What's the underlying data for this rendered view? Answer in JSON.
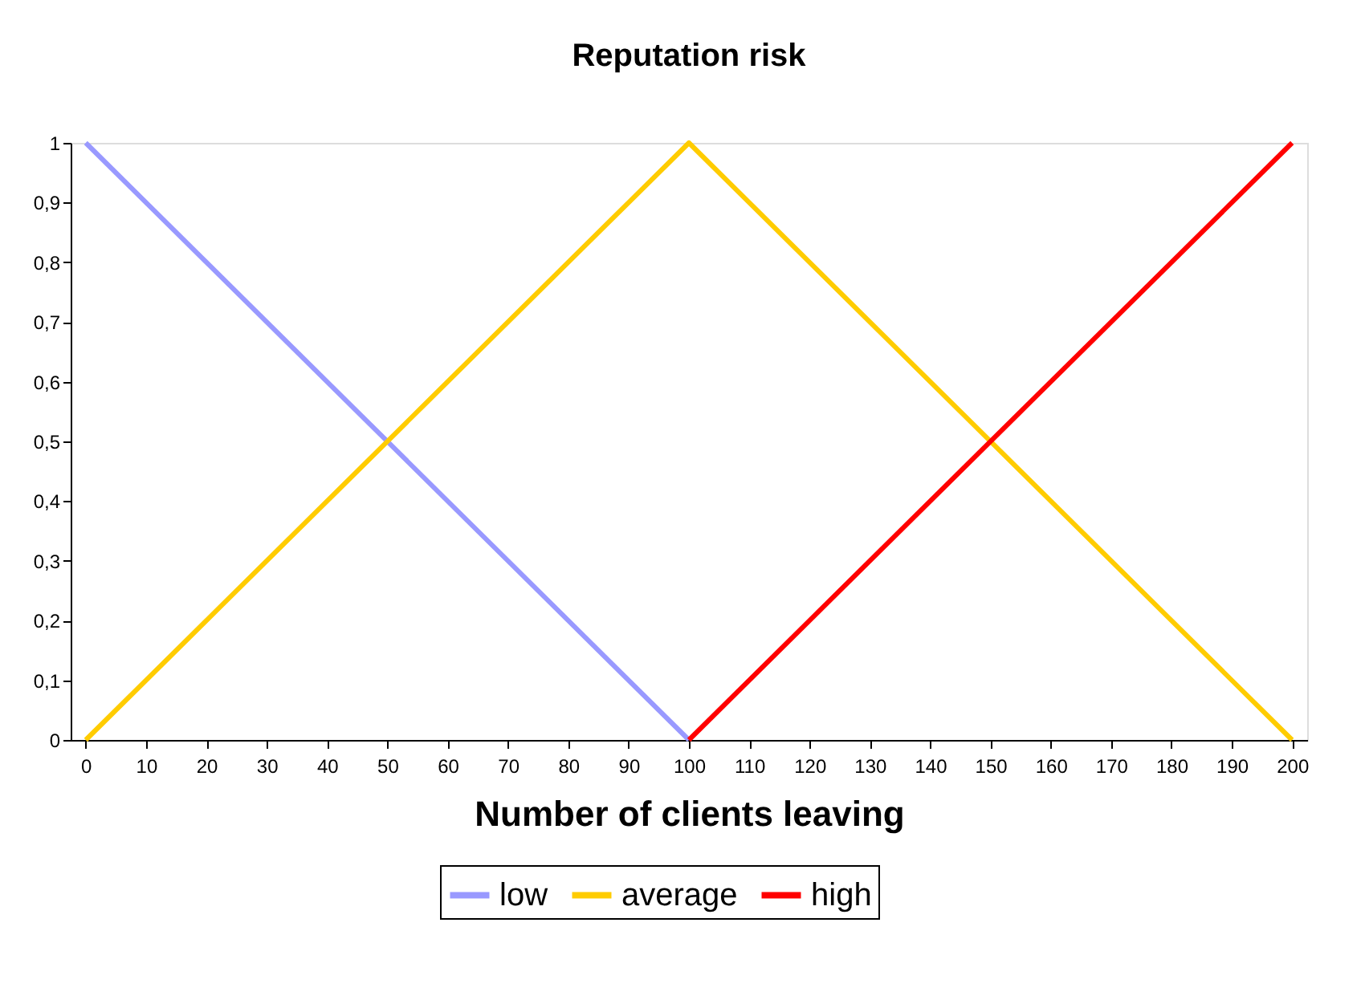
{
  "chart_data": {
    "type": "line",
    "title": "Reputation risk",
    "xlabel": "Number of clients leaving",
    "series": [
      {
        "name": "low",
        "color": "#9999ff",
        "x": [
          0,
          100
        ],
        "values": [
          1,
          0
        ]
      },
      {
        "name": "average",
        "color": "#ffcc00",
        "x": [
          0,
          100,
          200
        ],
        "values": [
          0,
          1,
          0
        ]
      },
      {
        "name": "high",
        "color": "#ff0000",
        "x": [
          100,
          200
        ],
        "values": [
          0,
          1
        ]
      }
    ],
    "xlim": [
      -2.5,
      202.5
    ],
    "xticks": [
      0,
      10,
      20,
      30,
      40,
      50,
      60,
      70,
      80,
      90,
      100,
      110,
      120,
      130,
      140,
      150,
      160,
      170,
      180,
      190,
      200
    ],
    "ylim": [
      0,
      1
    ],
    "yticks": [
      0,
      {
        "value": 0.1,
        "label": "0,1"
      },
      {
        "value": 0.2,
        "label": "0,2"
      },
      {
        "value": 0.3,
        "label": "0,3"
      },
      {
        "value": 0.4,
        "label": "0,4"
      },
      {
        "value": 0.5,
        "label": "0,5"
      },
      {
        "value": 0.6,
        "label": "0,6"
      },
      {
        "value": 0.7,
        "label": "0,7"
      },
      {
        "value": 0.8,
        "label": "0,8"
      },
      {
        "value": 0.9,
        "label": "0,9"
      },
      1
    ],
    "grid": false,
    "legend": "bottom",
    "marker": "none",
    "line_style": "solid"
  }
}
